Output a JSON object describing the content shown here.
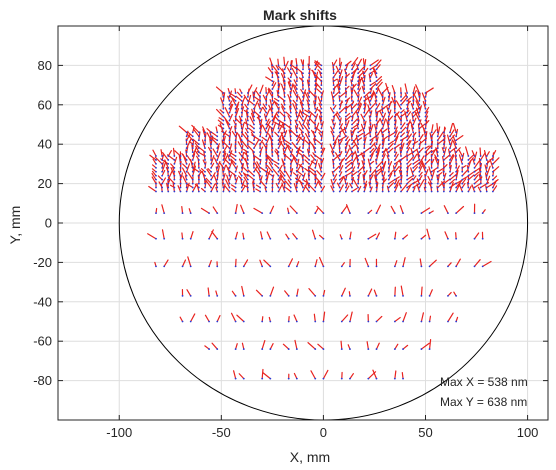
{
  "chart_data": {
    "type": "scatter",
    "subtype": "quiver",
    "title": "Mark shifts",
    "xlabel": "X, mm",
    "ylabel": "Y, mm",
    "xlim": [
      -130,
      110
    ],
    "ylim": [
      -100,
      100
    ],
    "xticks": [
      -100,
      -50,
      0,
      50,
      100
    ],
    "yticks": [
      -80,
      -60,
      -40,
      -20,
      0,
      20,
      40,
      60,
      80
    ],
    "xtick_labels": [
      "-100",
      "-50",
      "0",
      "50",
      "100"
    ],
    "ytick_labels": [
      "-80",
      "-60",
      "-40",
      "-20",
      "0",
      "20",
      "40",
      "60",
      "80"
    ],
    "grid": true,
    "wafer_circle": {
      "center": [
        0,
        0
      ],
      "radius": 100
    },
    "annotations": [
      "Max X = 538 nm",
      "Max Y = 638 nm"
    ],
    "colors": {
      "arrow": "#e8231f",
      "base_marker": "#2b3bd6",
      "circle": "#000000",
      "grid": "#dedede"
    },
    "dense_region": {
      "y_values": [
        16,
        18,
        20,
        22,
        24,
        26,
        28,
        30,
        32,
        34,
        36,
        38,
        40,
        42,
        44,
        46,
        48,
        50,
        52,
        54,
        56,
        58,
        60,
        62,
        64,
        66,
        68,
        70,
        72,
        74,
        76,
        78,
        80
      ],
      "x_step": 3,
      "x_min": -82,
      "x_max": 85,
      "center_gap": [
        -1,
        5
      ]
    },
    "sparse_rows": [
      {
        "y": 5,
        "x": [
          -80,
          -67,
          -54,
          -41,
          -28,
          -15,
          -2,
          11,
          24,
          37,
          50,
          63,
          76
        ]
      },
      {
        "y": -8,
        "x": [
          -80,
          -67,
          -54,
          -41,
          -28,
          -15,
          -2,
          11,
          24,
          37,
          50,
          63,
          76
        ]
      },
      {
        "y": -22,
        "x": [
          -80,
          -67,
          -54,
          -41,
          -28,
          -15,
          -2,
          11,
          24,
          37,
          50,
          63,
          76
        ]
      },
      {
        "y": -37,
        "x": [
          -67,
          -54,
          -41,
          -28,
          -15,
          -2,
          11,
          24,
          37,
          50,
          63
        ]
      },
      {
        "y": -50,
        "x": [
          -67,
          -54,
          -41,
          -28,
          -15,
          -2,
          11,
          24,
          37,
          50,
          63
        ]
      },
      {
        "y": -64,
        "x": [
          -54,
          -41,
          -28,
          -15,
          -2,
          11,
          24,
          37,
          50
        ]
      },
      {
        "y": -79,
        "x": [
          -41,
          -28,
          -15,
          -2,
          11,
          24,
          37
        ]
      }
    ]
  }
}
